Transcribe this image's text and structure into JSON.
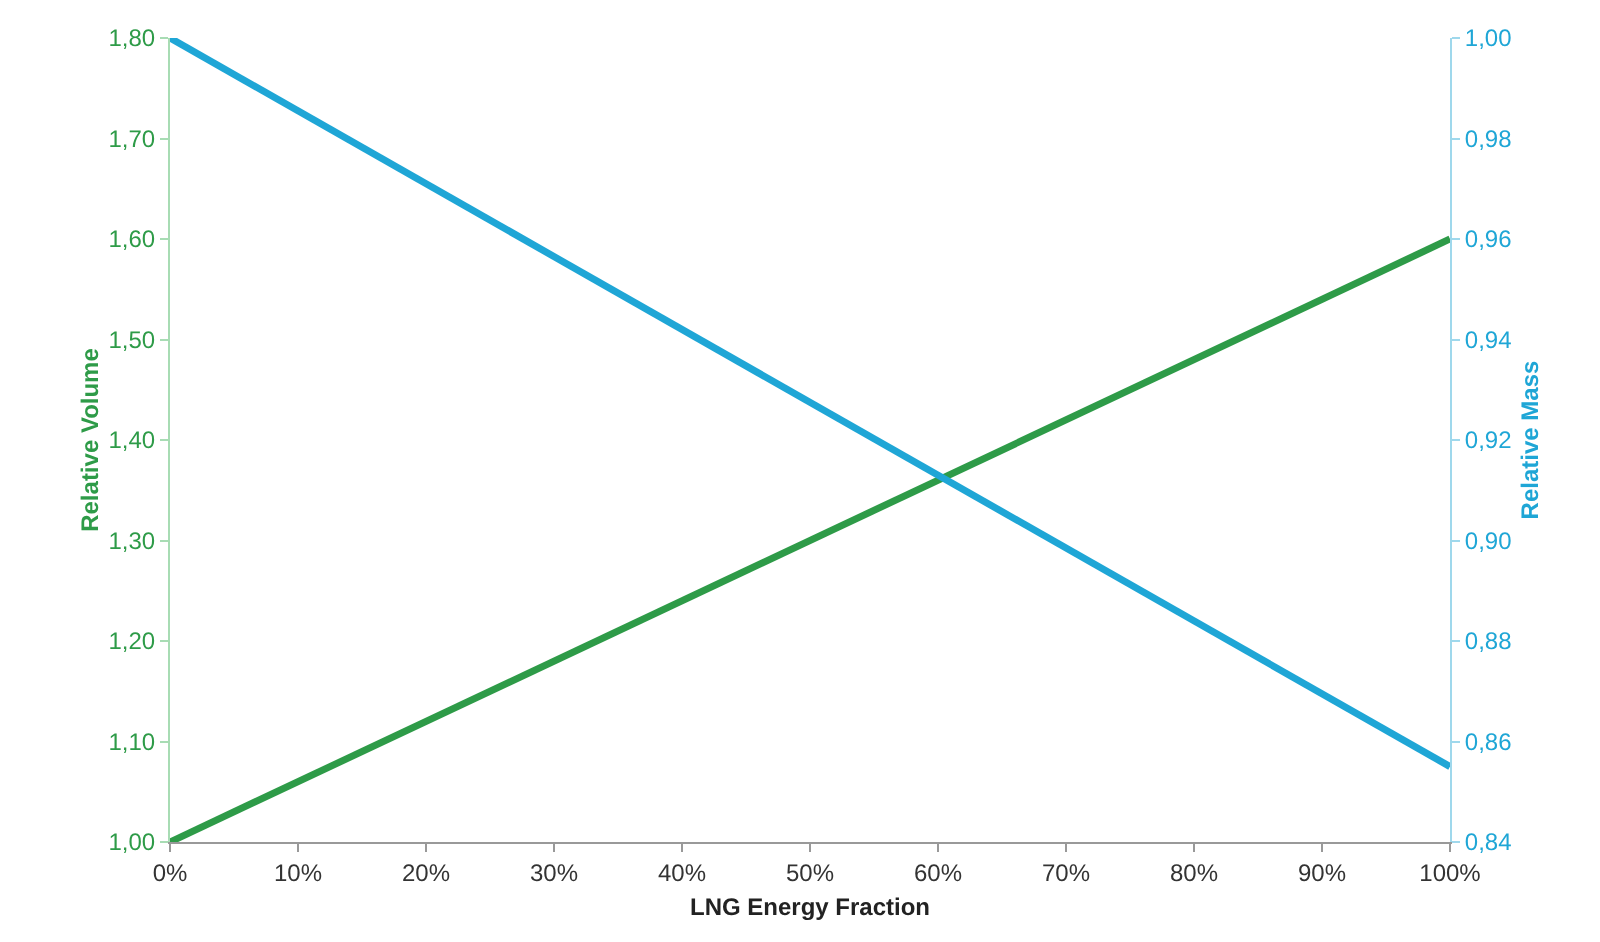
{
  "chart_data": {
    "type": "line",
    "xlabel": "LNG Energy Fraction",
    "ylabel": "Relative Volume",
    "y2label": "Relative Mass",
    "x": [
      0,
      100
    ],
    "series": [
      {
        "color": "#2e9b48",
        "values": [
          1.0,
          1.6
        ]
      },
      {
        "color": "#1fa6d6",
        "values": [
          1.0,
          0.855
        ],
        "axis": "y2"
      }
    ],
    "xlim": [
      0,
      100
    ],
    "xticks": [
      {
        "value": 0,
        "label": "0%"
      },
      {
        "value": 10,
        "label": "10%"
      },
      {
        "value": 20,
        "label": "20%"
      },
      {
        "value": 30,
        "label": "30%"
      },
      {
        "value": 40,
        "label": "40%"
      },
      {
        "value": 50,
        "label": "50%"
      },
      {
        "value": 60,
        "label": "60%"
      },
      {
        "value": 70,
        "label": "70%"
      },
      {
        "value": 80,
        "label": "80%"
      },
      {
        "value": 90,
        "label": "90%"
      },
      {
        "value": 100,
        "label": "100%"
      }
    ],
    "ylim": [
      1.0,
      1.8
    ],
    "yticks": [
      {
        "value": 1.0,
        "label": "1,00"
      },
      {
        "value": 1.1,
        "label": "1,10"
      },
      {
        "value": 1.2,
        "label": "1,20"
      },
      {
        "value": 1.3,
        "label": "1,30"
      },
      {
        "value": 1.4,
        "label": "1,40"
      },
      {
        "value": 1.5,
        "label": "1,50"
      },
      {
        "value": 1.6,
        "label": "1,60"
      },
      {
        "value": 1.7,
        "label": "1,70"
      },
      {
        "value": 1.8,
        "label": "1,80"
      }
    ],
    "y2lim": [
      0.84,
      1.0
    ],
    "y2ticks": [
      {
        "value": 0.84,
        "label": "0,84"
      },
      {
        "value": 0.86,
        "label": "0,86"
      },
      {
        "value": 0.88,
        "label": "0,88"
      },
      {
        "value": 0.9,
        "label": "0,90"
      },
      {
        "value": 0.92,
        "label": "0,92"
      },
      {
        "value": 0.94,
        "label": "0,94"
      },
      {
        "value": 0.96,
        "label": "0,96"
      },
      {
        "value": 0.98,
        "label": "0,98"
      },
      {
        "value": 1.0,
        "label": "1,00"
      }
    ],
    "grid": false,
    "marker": "none",
    "line_style": "solid"
  }
}
